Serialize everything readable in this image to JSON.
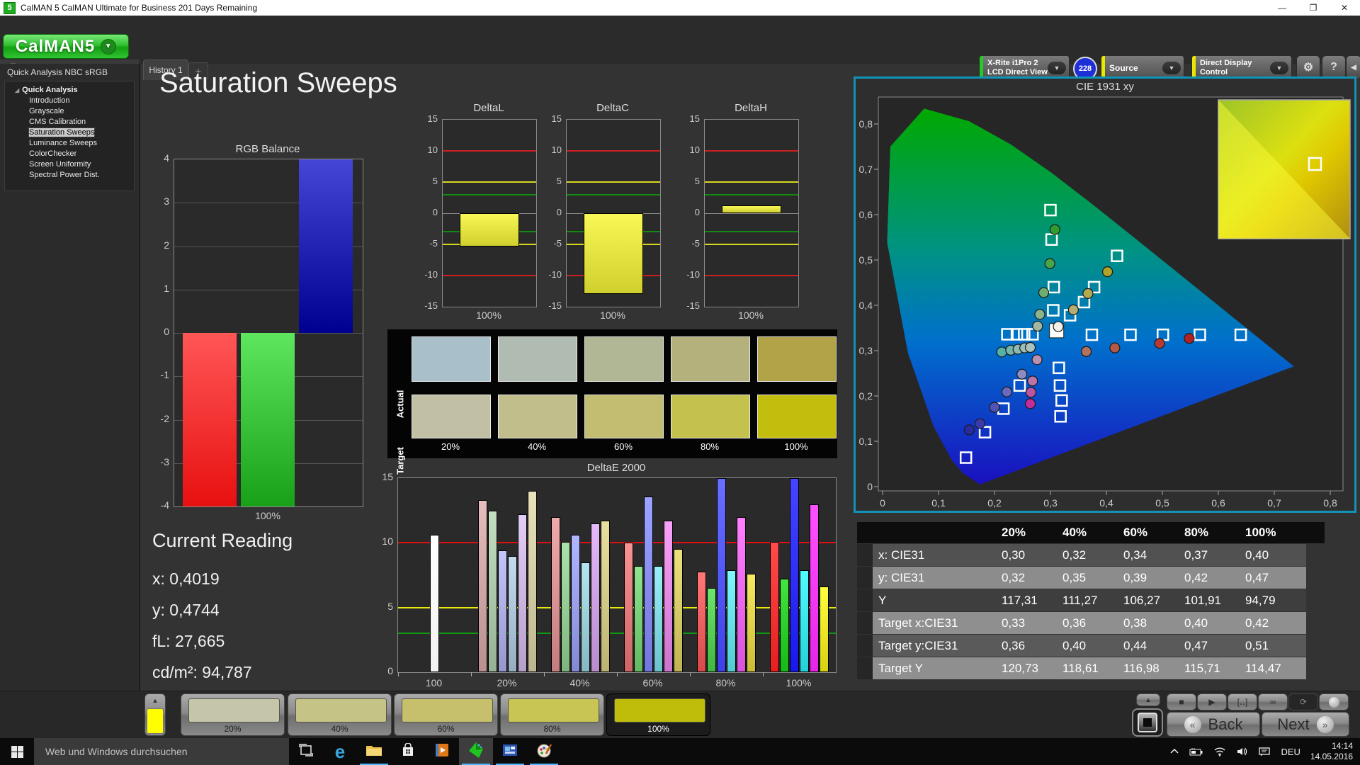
{
  "window": {
    "title": "CalMAN 5 CalMAN Ultimate for Business 201 Days Remaining",
    "app_icon": "5",
    "minimize": "—",
    "restore": "❐",
    "close": "✕"
  },
  "logo": {
    "text": "CalMAN",
    "number": "5",
    "arrow": "▼"
  },
  "tab_row": {
    "history_tab": "History 1",
    "add_tab": "+",
    "collapse_arrow": "◀"
  },
  "top_controls": {
    "meter_line1": "X-Rite i1Pro 2",
    "meter_line2": "LCD Direct View",
    "meter_stripe": "#22cc22",
    "badge": "228",
    "source_label": "Source",
    "source_stripe": "#e8e800",
    "display_control_label": "Direct Display Control",
    "display_stripe": "#e8e800",
    "gear": "⚙",
    "help": "?",
    "collapse": "◀",
    "dd_arrow": "▼"
  },
  "sidebar": {
    "header": "Quick Analysis NBC sRGB",
    "root": "Quick Analysis",
    "items": [
      {
        "label": "Introduction",
        "selected": false
      },
      {
        "label": "Grayscale",
        "selected": false
      },
      {
        "label": "CMS Calibration",
        "selected": false
      },
      {
        "label": "Saturation Sweeps",
        "selected": true
      },
      {
        "label": "Luminance Sweeps",
        "selected": false
      },
      {
        "label": "ColorChecker",
        "selected": false
      },
      {
        "label": "Screen Uniformity",
        "selected": false
      },
      {
        "label": "Spectral Power Dist.",
        "selected": false
      }
    ]
  },
  "main_title": "Saturation Sweeps",
  "current_reading": {
    "title": "Current Reading",
    "lines": [
      "x: 0,4019",
      "y: 0,4744",
      "fL: 27,665",
      "cd/m²: 94,787"
    ]
  },
  "swatch_panel": {
    "row_labels": [
      "Actual",
      "Target"
    ],
    "col_labels": [
      "20%",
      "40%",
      "60%",
      "80%",
      "100%"
    ],
    "actual_colors": [
      "#a9bfca",
      "#b0bcb1",
      "#b1b795",
      "#b4b17c",
      "#b2a348"
    ],
    "target_colors": [
      "#c1c0a5",
      "#c1be8c",
      "#c3bd72",
      "#c5c14d",
      "#c3bd0e"
    ]
  },
  "table": {
    "headers": [
      "20%",
      "40%",
      "60%",
      "80%",
      "100%"
    ],
    "rows": [
      {
        "label": "x: CIE31",
        "values": [
          "0,30",
          "0,32",
          "0,34",
          "0,37",
          "0,40"
        ]
      },
      {
        "label": "y: CIE31",
        "values": [
          "0,32",
          "0,35",
          "0,39",
          "0,42",
          "0,47"
        ]
      },
      {
        "label": "Y",
        "values": [
          "117,31",
          "111,27",
          "106,27",
          "101,91",
          "94,79"
        ]
      },
      {
        "label": "Target x:CIE31",
        "values": [
          "0,33",
          "0,36",
          "0,38",
          "0,40",
          "0,42"
        ]
      },
      {
        "label": "Target y:CIE31",
        "values": [
          "0,36",
          "0,40",
          "0,44",
          "0,47",
          "0,51"
        ]
      },
      {
        "label": "Target Y",
        "values": [
          "120,73",
          "118,61",
          "116,98",
          "115,71",
          "114,47"
        ]
      }
    ]
  },
  "bottom_bar": {
    "swatch_buttons": [
      {
        "label": "20%",
        "color": "#c5c6a9",
        "selected": false
      },
      {
        "label": "40%",
        "color": "#c6c386",
        "selected": false
      },
      {
        "label": "60%",
        "color": "#c6c06c",
        "selected": false
      },
      {
        "label": "80%",
        "color": "#c9c554",
        "selected": false
      },
      {
        "label": "100%",
        "color": "#c0bc0a",
        "selected": true
      }
    ],
    "mini_swatch_color": "#ffff00",
    "back_label": "Back",
    "next_label": "Next",
    "transport": [
      {
        "name": "stop-button",
        "glyph": "■"
      },
      {
        "name": "play-button",
        "glyph": "▶"
      },
      {
        "name": "bracket-read-button",
        "glyph": "[‥]"
      },
      {
        "name": "continuous-button",
        "glyph": "∞"
      },
      {
        "name": "refresh-button",
        "glyph": "⟳",
        "active": true
      },
      {
        "name": "ball-button",
        "glyph": "●"
      }
    ]
  },
  "taskbar": {
    "search_placeholder": "Web und Windows durchsuchen",
    "icons": [
      {
        "name": "task-view-icon",
        "running": false,
        "active": false
      },
      {
        "name": "edge-icon",
        "running": false,
        "active": false
      },
      {
        "name": "file-explorer-icon",
        "running": true,
        "active": false
      },
      {
        "name": "store-icon",
        "running": false,
        "active": false
      },
      {
        "name": "media-player-icon",
        "running": false,
        "active": false
      },
      {
        "name": "calman-icon",
        "running": true,
        "active": true
      },
      {
        "name": "photo-app-icon",
        "running": true,
        "active": false
      },
      {
        "name": "paint-icon",
        "running": true,
        "active": false
      }
    ],
    "tray": {
      "lang": "DEU",
      "time": "14:14",
      "date": "14.05.2016"
    }
  },
  "chart_data": [
    {
      "id": "rgb_balance",
      "type": "bar",
      "title": "RGB Balance",
      "categories": [
        "Red",
        "Green",
        "Blue"
      ],
      "values": [
        -4,
        -4,
        4
      ],
      "colors": [
        "#e81010",
        "#18a018",
        "#000090"
      ],
      "ylim": [
        -4,
        4
      ],
      "yticks": [
        4,
        3,
        2,
        1,
        0,
        -1,
        -2,
        -3,
        -4
      ],
      "xlabel": "100%"
    },
    {
      "id": "deltaL",
      "type": "bar",
      "title": "DeltaL",
      "categories": [
        "100%"
      ],
      "values": [
        -5.3
      ],
      "bar_color": "#cfcf2e",
      "ylim": [
        -15,
        15
      ],
      "yticks": [
        15,
        10,
        5,
        0,
        -5,
        -10,
        -15
      ],
      "ref_lines": [
        {
          "value": 10,
          "color": "#cc2020"
        },
        {
          "value": 5,
          "color": "#d8d820"
        },
        {
          "value": 3,
          "color": "#128a12"
        },
        {
          "value": -3,
          "color": "#128a12"
        },
        {
          "value": -5,
          "color": "#d8d820"
        },
        {
          "value": -10,
          "color": "#cc2020"
        }
      ],
      "xlabel": "100%"
    },
    {
      "id": "deltaC",
      "type": "bar",
      "title": "DeltaC",
      "categories": [
        "100%"
      ],
      "values": [
        -13
      ],
      "bar_color": "#cfcf2e",
      "ylim": [
        -15,
        15
      ],
      "yticks": [
        15,
        10,
        5,
        0,
        -5,
        -10,
        -15
      ],
      "ref_lines": [
        {
          "value": 10,
          "color": "#cc2020"
        },
        {
          "value": 5,
          "color": "#d8d820"
        },
        {
          "value": 3,
          "color": "#128a12"
        },
        {
          "value": -3,
          "color": "#128a12"
        },
        {
          "value": -5,
          "color": "#d8d820"
        },
        {
          "value": -10,
          "color": "#cc2020"
        }
      ],
      "xlabel": "100%"
    },
    {
      "id": "deltaH",
      "type": "bar",
      "title": "DeltaH",
      "categories": [
        "100%"
      ],
      "values": [
        1.2
      ],
      "bar_color": "#cfcf2e",
      "ylim": [
        -15,
        15
      ],
      "yticks": [
        15,
        10,
        5,
        0,
        -5,
        -10,
        -15
      ],
      "ref_lines": [
        {
          "value": 10,
          "color": "#cc2020"
        },
        {
          "value": 5,
          "color": "#d8d820"
        },
        {
          "value": 3,
          "color": "#128a12"
        },
        {
          "value": -3,
          "color": "#128a12"
        },
        {
          "value": -5,
          "color": "#d8d820"
        },
        {
          "value": -10,
          "color": "#cc2020"
        }
      ],
      "xlabel": "100%"
    },
    {
      "id": "deltaE2000",
      "type": "grouped-bar",
      "title": "DeltaE 2000",
      "ylim": [
        0,
        15
      ],
      "yticks": [
        15,
        10,
        5,
        0
      ],
      "ref_lines": [
        {
          "value": 10,
          "color": "#e01010"
        },
        {
          "value": 5,
          "color": "#e8e810"
        },
        {
          "value": 3,
          "color": "#0e9a0e"
        }
      ],
      "groups": [
        {
          "label": "100",
          "values": [
            10.6
          ],
          "colors": [
            "#f2f2f2"
          ]
        },
        {
          "label": "20%",
          "values": [
            13.3,
            12.5,
            9.4,
            9.0,
            12.2,
            14.0
          ],
          "colors": [
            "#b98f8f",
            "#97b194",
            "#9598cc",
            "#97adc0",
            "#b6a0c9",
            "#bcb58d"
          ]
        },
        {
          "label": "40%",
          "values": [
            12.0,
            10.1,
            10.6,
            8.5,
            11.5,
            11.7
          ],
          "colors": [
            "#c27e7e",
            "#7fb47f",
            "#8389d2",
            "#85b8c2",
            "#b88ccc",
            "#bcb272"
          ]
        },
        {
          "label": "60%",
          "values": [
            10.0,
            8.2,
            13.6,
            8.2,
            11.7,
            9.5
          ],
          "colors": [
            "#cc6666",
            "#62b862",
            "#7076dc",
            "#6cc2cc",
            "#cc74cc",
            "#c0b452"
          ]
        },
        {
          "label": "80%",
          "values": [
            7.8,
            6.5,
            15.3,
            7.9,
            12.0,
            7.6
          ],
          "colors": [
            "#d84a4a",
            "#40b840",
            "#3c42e6",
            "#52cad2",
            "#da52da",
            "#cabc34"
          ]
        },
        {
          "label": "100%",
          "values": [
            10.1,
            7.2,
            15.3,
            7.9,
            13.0,
            6.6
          ],
          "colors": [
            "#e61e1e",
            "#16b816",
            "#1818ee",
            "#24d0da",
            "#e624e6",
            "#d8d012"
          ]
        }
      ]
    },
    {
      "id": "cie",
      "type": "scatter",
      "title": "CIE 1931 xy",
      "xlim": [
        0,
        0.8
      ],
      "ylim": [
        0,
        0.85
      ],
      "x_tick_labels": [
        "0",
        "0,1",
        "0,2",
        "0,3",
        "0,4",
        "0,5",
        "0,6",
        "0,7",
        "0,8"
      ],
      "y_tick_labels": [
        "0",
        "0,1",
        "0,2",
        "0,3",
        "0,4",
        "0,5",
        "0,6",
        "0,7",
        "0,8"
      ],
      "gamut_triangle": [
        [
          0.64,
          0.33
        ],
        [
          0.3,
          0.6
        ],
        [
          0.15,
          0.06
        ]
      ],
      "white_point": [
        0.311,
        0.344
      ],
      "targets": [
        [
          0.3,
          0.61
        ],
        [
          0.302,
          0.545
        ],
        [
          0.306,
          0.44
        ],
        [
          0.305,
          0.389
        ],
        [
          0.223,
          0.336
        ],
        [
          0.24,
          0.336
        ],
        [
          0.253,
          0.336
        ],
        [
          0.268,
          0.336
        ],
        [
          0.374,
          0.335
        ],
        [
          0.443,
          0.335
        ],
        [
          0.501,
          0.335
        ],
        [
          0.567,
          0.335
        ],
        [
          0.64,
          0.335
        ],
        [
          0.419,
          0.509
        ],
        [
          0.378,
          0.44
        ],
        [
          0.36,
          0.407
        ],
        [
          0.335,
          0.378
        ],
        [
          0.315,
          0.262
        ],
        [
          0.317,
          0.223
        ],
        [
          0.32,
          0.19
        ],
        [
          0.318,
          0.155
        ],
        [
          0.245,
          0.223
        ],
        [
          0.216,
          0.172
        ],
        [
          0.183,
          0.12
        ],
        [
          0.149,
          0.064
        ]
      ],
      "measured": [
        {
          "x": 0.308,
          "y": 0.567,
          "color": "#2f9e2f"
        },
        {
          "x": 0.299,
          "y": 0.492,
          "color": "#4aa44a"
        },
        {
          "x": 0.288,
          "y": 0.428,
          "color": "#6fae6f"
        },
        {
          "x": 0.281,
          "y": 0.38,
          "color": "#8cb48c"
        },
        {
          "x": 0.277,
          "y": 0.354,
          "color": "#a2b8a2"
        },
        {
          "x": 0.402,
          "y": 0.474,
          "color": "#b0a428"
        },
        {
          "x": 0.367,
          "y": 0.426,
          "color": "#b2aa4e"
        },
        {
          "x": 0.341,
          "y": 0.39,
          "color": "#b4ae72"
        },
        {
          "x": 0.314,
          "y": 0.353,
          "color": "#f2f2ea"
        },
        {
          "x": 0.364,
          "y": 0.298,
          "color": "#b4705e"
        },
        {
          "x": 0.415,
          "y": 0.306,
          "color": "#b45848"
        },
        {
          "x": 0.495,
          "y": 0.316,
          "color": "#b43a32"
        },
        {
          "x": 0.548,
          "y": 0.327,
          "color": "#b22222"
        },
        {
          "x": 0.213,
          "y": 0.297,
          "color": "#55b2a8"
        },
        {
          "x": 0.229,
          "y": 0.301,
          "color": "#74b6ae"
        },
        {
          "x": 0.242,
          "y": 0.303,
          "color": "#8abab2"
        },
        {
          "x": 0.254,
          "y": 0.306,
          "color": "#9cbeb8"
        },
        {
          "x": 0.264,
          "y": 0.307,
          "color": "#aac2bc"
        },
        {
          "x": 0.249,
          "y": 0.248,
          "color": "#8c8cc4"
        },
        {
          "x": 0.222,
          "y": 0.209,
          "color": "#6a6abc"
        },
        {
          "x": 0.2,
          "y": 0.175,
          "color": "#5252b2"
        },
        {
          "x": 0.174,
          "y": 0.139,
          "color": "#3a3aaa"
        },
        {
          "x": 0.155,
          "y": 0.125,
          "color": "#2a2aa2"
        },
        {
          "x": 0.276,
          "y": 0.28,
          "color": "#b890b2"
        },
        {
          "x": 0.268,
          "y": 0.233,
          "color": "#ba74aa"
        },
        {
          "x": 0.265,
          "y": 0.208,
          "color": "#bc54a4"
        },
        {
          "x": 0.264,
          "y": 0.183,
          "color": "#c22c9c"
        }
      ]
    }
  ]
}
